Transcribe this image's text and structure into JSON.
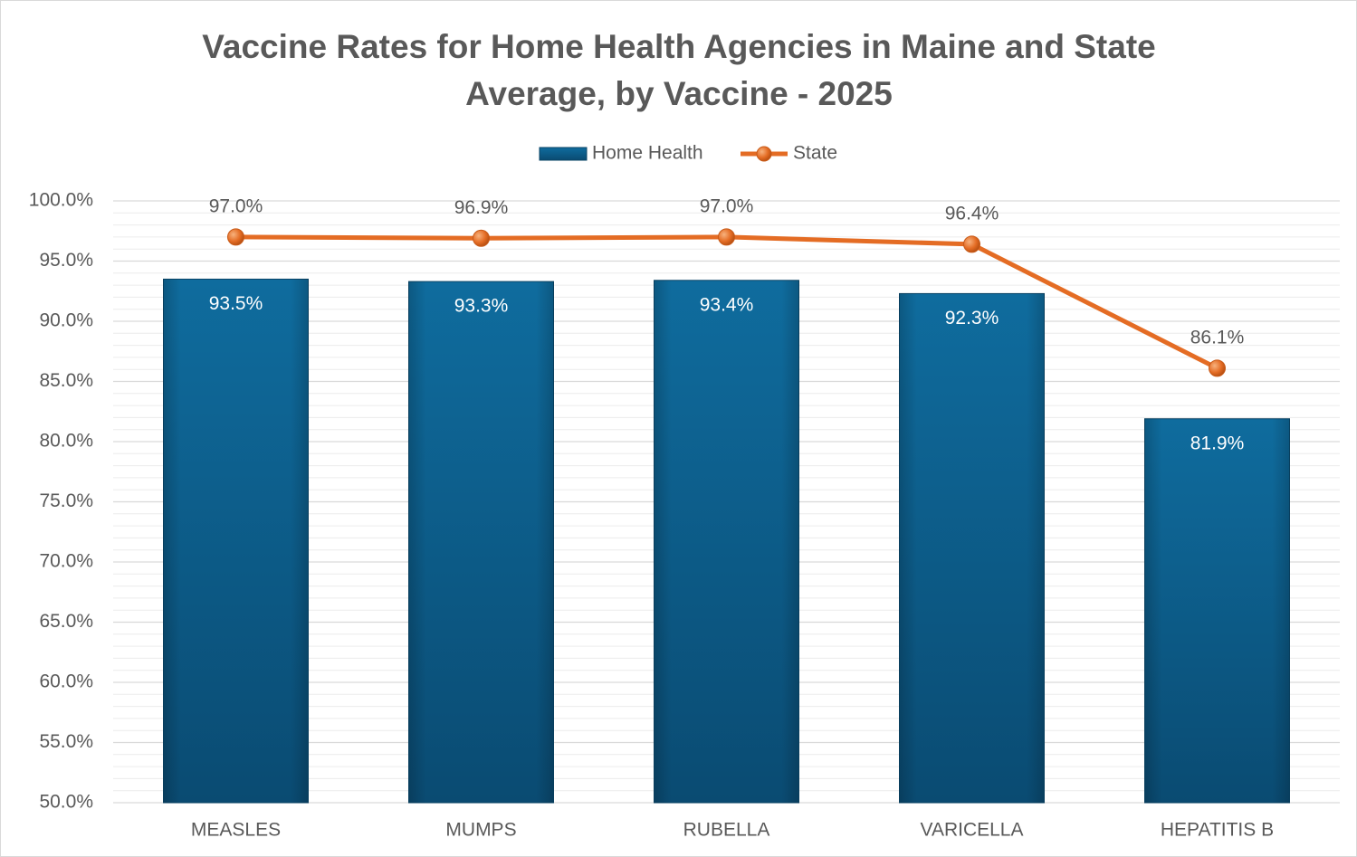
{
  "chart_data": {
    "type": "bar",
    "title": "Vaccine Rates for Home Health Agencies in Maine and State Average, by Vaccine - 2025",
    "categories": [
      "MEASLES",
      "MUMPS",
      "RUBELLA",
      "VARICELLA",
      "HEPATITIS B"
    ],
    "series": [
      {
        "name": "Home Health",
        "type": "bar",
        "color": "#0c5f8c",
        "values": [
          93.5,
          93.3,
          93.4,
          92.3,
          81.9
        ],
        "value_labels": [
          "93.5%",
          "93.3%",
          "93.4%",
          "92.3%",
          "81.9%"
        ]
      },
      {
        "name": "State",
        "type": "line",
        "color": "#e46c24",
        "values": [
          97.0,
          96.9,
          97.0,
          96.4,
          86.1
        ],
        "value_labels": [
          "97.0%",
          "96.9%",
          "97.0%",
          "96.4%",
          "86.1%"
        ]
      }
    ],
    "ylim": [
      50,
      100
    ],
    "yticks": [
      {
        "value": 50,
        "label": "50.0%"
      },
      {
        "value": 55,
        "label": "55.0%"
      },
      {
        "value": 60,
        "label": "60.0%"
      },
      {
        "value": 65,
        "label": "65.0%"
      },
      {
        "value": 70,
        "label": "70.0%"
      },
      {
        "value": 75,
        "label": "75.0%"
      },
      {
        "value": 80,
        "label": "80.0%"
      },
      {
        "value": 85,
        "label": "85.0%"
      },
      {
        "value": 90,
        "label": "90.0%"
      },
      {
        "value": 95,
        "label": "95.0%"
      },
      {
        "value": 100,
        "label": "100.0%"
      }
    ],
    "grid": true,
    "legend": "top"
  }
}
